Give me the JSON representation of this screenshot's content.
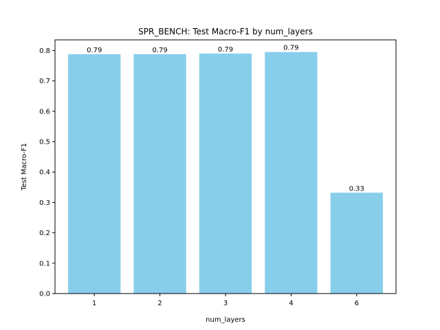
{
  "chart_data": {
    "type": "bar",
    "title": "SPR_BENCH: Test Macro-F1 by num_layers",
    "xlabel": "num_layers",
    "ylabel": "Test Macro-F1",
    "categories": [
      "1",
      "2",
      "3",
      "4",
      "6"
    ],
    "values": [
      0.788,
      0.788,
      0.79,
      0.795,
      0.332
    ],
    "data_labels": [
      "0.79",
      "0.79",
      "0.79",
      "0.79",
      "0.33"
    ],
    "ylim": [
      0,
      0.835
    ],
    "yticks": [
      0.0,
      0.1,
      0.2,
      0.3,
      0.4,
      0.5,
      0.6,
      0.7,
      0.8
    ],
    "ytick_labels": [
      "0.0",
      "0.1",
      "0.2",
      "0.3",
      "0.4",
      "0.5",
      "0.6",
      "0.7",
      "0.8"
    ],
    "bar_color": "#87ceeb",
    "grid": false,
    "legend": "none"
  }
}
